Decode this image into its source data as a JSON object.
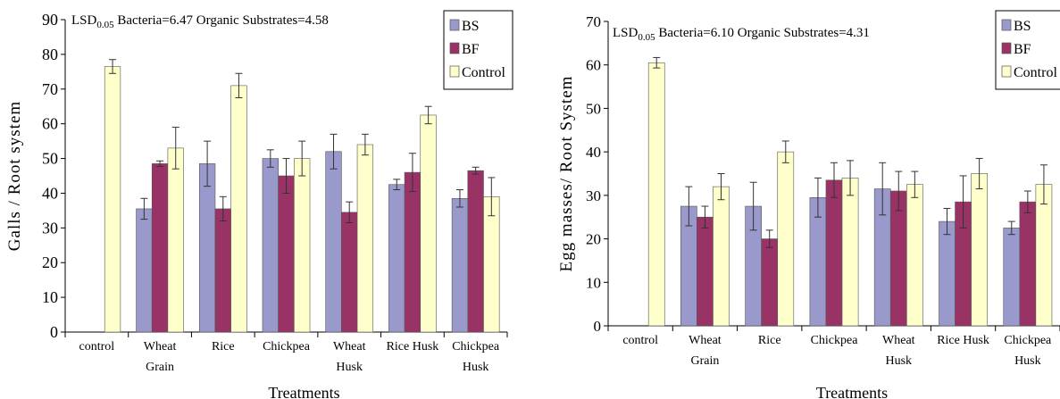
{
  "chart_data": [
    {
      "type": "bar",
      "ylabel": "Galls / Root system",
      "xlabel": "Treatments",
      "ylim": [
        0,
        90
      ],
      "yticks": [
        0,
        10,
        20,
        30,
        40,
        50,
        60,
        70,
        80,
        90
      ],
      "lsd": {
        "prefix": "LSD",
        "sub": "0.05",
        "text": " Bacteria=6.47  Organic Substrates=4.58"
      },
      "legend_position": "top-right",
      "categories": [
        [
          "control"
        ],
        [
          "Wheat",
          "Grain"
        ],
        [
          "Rice"
        ],
        [
          "Chickpea"
        ],
        [
          "Wheat",
          "Husk"
        ],
        [
          "Rice Husk"
        ],
        [
          "Chickpea",
          "Husk"
        ]
      ],
      "series": [
        {
          "name": "BS",
          "color": "#9999cc",
          "values": [
            null,
            35.5,
            48.5,
            50,
            52,
            42.5,
            38.5
          ],
          "errors": [
            null,
            3,
            6.5,
            2.5,
            5,
            1.5,
            2.5
          ]
        },
        {
          "name": "BF",
          "color": "#993366",
          "values": [
            null,
            48.5,
            35.5,
            45,
            34.5,
            46,
            46.5
          ],
          "errors": [
            null,
            0.8,
            3.5,
            5,
            3,
            5.5,
            1
          ]
        },
        {
          "name": "Control",
          "color": "#ffffcc",
          "values": [
            76.5,
            53,
            71,
            50,
            54,
            62.5,
            39
          ],
          "errors": [
            2,
            6,
            3.5,
            5,
            3,
            2.5,
            5.5
          ]
        }
      ]
    },
    {
      "type": "bar",
      "ylabel": "Egg masses/ Root System",
      "xlabel": "Treatments",
      "ylim": [
        0,
        70
      ],
      "yticks": [
        0,
        10,
        20,
        30,
        40,
        50,
        60,
        70
      ],
      "lsd": {
        "prefix": "LSD",
        "sub": "0.05",
        "text": " Bacteria=6.10  Organic Substrates=4.31"
      },
      "legend_position": "top-right",
      "categories": [
        [
          "control"
        ],
        [
          "Wheat",
          "Grain"
        ],
        [
          "Rice"
        ],
        [
          "Chickpea"
        ],
        [
          "Wheat",
          "Husk"
        ],
        [
          "Rice Husk"
        ],
        [
          "Chickpea",
          "Husk"
        ]
      ],
      "series": [
        {
          "name": "BS",
          "color": "#9999cc",
          "values": [
            null,
            27.5,
            27.5,
            29.5,
            31.5,
            24,
            22.5
          ],
          "errors": [
            null,
            4.5,
            5.5,
            4.5,
            6,
            3,
            1.5
          ]
        },
        {
          "name": "BF",
          "color": "#993366",
          "values": [
            null,
            25,
            20,
            33.5,
            31,
            28.5,
            28.5
          ],
          "errors": [
            null,
            2.5,
            2,
            4,
            4.5,
            6,
            2.5
          ]
        },
        {
          "name": "Control",
          "color": "#ffffcc",
          "values": [
            60.5,
            32,
            40,
            34,
            32.5,
            35,
            32.5
          ],
          "errors": [
            1.2,
            3,
            2.5,
            4,
            3,
            3.5,
            4.5
          ]
        }
      ]
    }
  ]
}
